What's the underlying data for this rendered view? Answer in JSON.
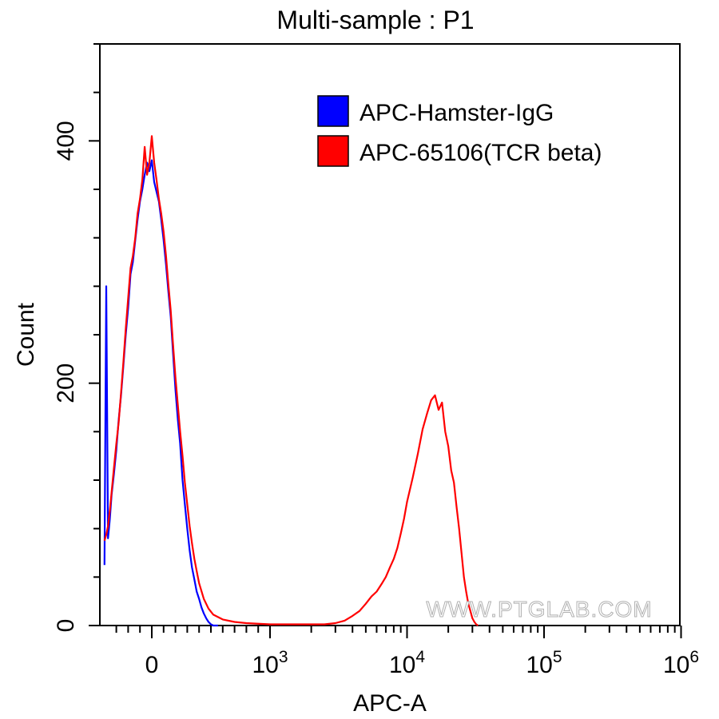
{
  "chart_data": {
    "type": "line",
    "title": "Multi-sample : P1",
    "xlabel": "APC-A",
    "ylabel": "Count",
    "x_scale": "biexponential",
    "xlim": [
      -400,
      1000000
    ],
    "ylim": [
      0,
      480
    ],
    "x_ticks": [
      {
        "value": 0,
        "label": "0",
        "exponent": ""
      },
      {
        "value": 1000,
        "label": "10",
        "exponent": "3"
      },
      {
        "value": 10000,
        "label": "10",
        "exponent": "4"
      },
      {
        "value": 100000,
        "label": "10",
        "exponent": "5"
      },
      {
        "value": 1000000,
        "label": "10",
        "exponent": "6"
      }
    ],
    "y_ticks": [
      {
        "value": 0,
        "label": "0"
      },
      {
        "value": 200,
        "label": "200"
      },
      {
        "value": 400,
        "label": "400"
      }
    ],
    "legend_position": "top-right",
    "watermark": "WWW.PTGLAB.COM",
    "series": [
      {
        "name": "APC-Hamster-IgG",
        "color": "#0000ff",
        "x": [
          -400,
          -385,
          -370,
          -355,
          -340,
          -320,
          -300,
          -280,
          -260,
          -240,
          -220,
          -200,
          -180,
          -160,
          -140,
          -120,
          -100,
          -80,
          -60,
          -40,
          -20,
          0,
          20,
          40,
          60,
          80,
          100,
          120,
          140,
          160,
          180,
          200,
          220,
          240,
          260,
          280,
          300,
          320,
          340,
          360,
          380,
          400,
          420,
          440,
          460,
          480,
          500,
          520,
          560
        ],
        "y": [
          50,
          280,
          72,
          88,
          108,
          125,
          145,
          170,
          190,
          215,
          240,
          262,
          290,
          300,
          318,
          335,
          350,
          360,
          372,
          382,
          375,
          384,
          366,
          358,
          350,
          335,
          318,
          298,
          276,
          255,
          225,
          195,
          170,
          150,
          120,
          100,
          80,
          62,
          48,
          38,
          28,
          22,
          15,
          10,
          6,
          3,
          1,
          0,
          0
        ]
      },
      {
        "name": "APC-65106(TCR beta)",
        "color": "#ff0000",
        "x": [
          -400,
          -385,
          -370,
          -355,
          -340,
          -320,
          -300,
          -280,
          -260,
          -240,
          -220,
          -200,
          -180,
          -160,
          -140,
          -120,
          -100,
          -80,
          -60,
          -40,
          -20,
          0,
          20,
          40,
          60,
          80,
          100,
          120,
          140,
          160,
          180,
          200,
          220,
          240,
          260,
          280,
          300,
          320,
          340,
          360,
          380,
          400,
          440,
          480,
          520,
          560,
          600,
          700,
          800,
          1000,
          1500,
          2000,
          2500,
          3000,
          3500,
          4000,
          4500,
          5000,
          5500,
          6000,
          6500,
          7000,
          7500,
          8000,
          8500,
          9000,
          9500,
          10000,
          11000,
          12000,
          13000,
          14000,
          15000,
          16000,
          17000,
          18000,
          19000,
          20000,
          21000,
          22000,
          23000,
          24000,
          25000,
          26000,
          27000,
          28000,
          29000,
          30000,
          31000,
          32000,
          33000
        ],
        "y": [
          70,
          75,
          82,
          95,
          110,
          130,
          150,
          168,
          192,
          218,
          245,
          270,
          295,
          305,
          320,
          340,
          352,
          368,
          395,
          372,
          382,
          404,
          382,
          368,
          352,
          340,
          325,
          305,
          282,
          260,
          232,
          205,
          182,
          160,
          140,
          118,
          100,
          82,
          68,
          55,
          45,
          35,
          22,
          14,
          9,
          7,
          5,
          3,
          2,
          1,
          1,
          1,
          1,
          2,
          4,
          8,
          12,
          18,
          24,
          28,
          34,
          40,
          48,
          55,
          64,
          76,
          88,
          102,
          122,
          142,
          162,
          175,
          186,
          190,
          178,
          184,
          160,
          148,
          128,
          118,
          98,
          80,
          60,
          40,
          28,
          18,
          12,
          6,
          3,
          1,
          0
        ]
      }
    ]
  }
}
